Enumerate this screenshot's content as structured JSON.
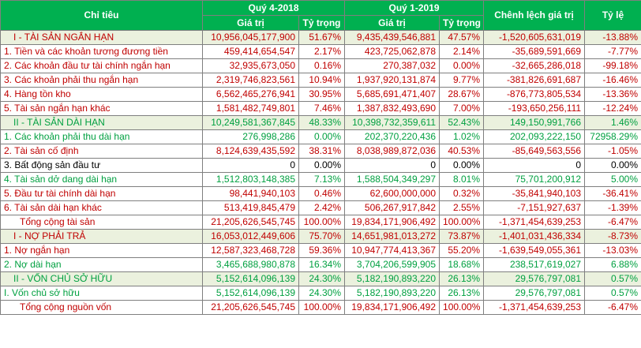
{
  "headers": {
    "chi_tieu": "Chỉ tiêu",
    "q4_2018": "Quý 4-2018",
    "q1_2019": "Quý 1-2019",
    "chenh_lech": "Chênh lệch giá trị",
    "ty_le": "Tỷ lệ",
    "gia_tri": "Giá trị",
    "ty_trong": "Tỷ trọng"
  },
  "rows": [
    {
      "label": "I - TÀI SẢN NGẮN HẠN",
      "v1": "10,956,045,177,900",
      "p1": "51.67%",
      "v2": "9,435,439,546,881",
      "p2": "47.57%",
      "diff": "-1,520,605,631,019",
      "rate": "-13.88%",
      "color": "red",
      "section": true
    },
    {
      "label": "1. Tiền và các khoản tương đương tiền",
      "v1": "459,414,654,547",
      "p1": "2.17%",
      "v2": "423,725,062,878",
      "p2": "2.14%",
      "diff": "-35,689,591,669",
      "rate": "-7.77%",
      "color": "red"
    },
    {
      "label": "2. Các khoản đầu tư tài chính ngắn hạn",
      "v1": "32,935,673,050",
      "p1": "0.16%",
      "v2": "270,387,032",
      "p2": "0.00%",
      "diff": "-32,665,286,018",
      "rate": "-99.18%",
      "color": "red"
    },
    {
      "label": "3. Các khoản phải thu ngắn hạn",
      "v1": "2,319,746,823,561",
      "p1": "10.94%",
      "v2": "1,937,920,131,874",
      "p2": "9.77%",
      "diff": "-381,826,691,687",
      "rate": "-16.46%",
      "color": "red"
    },
    {
      "label": "4. Hàng tồn kho",
      "v1": "6,562,465,276,941",
      "p1": "30.95%",
      "v2": "5,685,691,471,407",
      "p2": "28.67%",
      "diff": "-876,773,805,534",
      "rate": "-13.36%",
      "color": "red"
    },
    {
      "label": "5. Tài sản ngắn hạn khác",
      "v1": "1,581,482,749,801",
      "p1": "7.46%",
      "v2": "1,387,832,493,690",
      "p2": "7.00%",
      "diff": "-193,650,256,111",
      "rate": "-12.24%",
      "color": "red"
    },
    {
      "label": "II - TÀI SẢN DÀI HẠN",
      "v1": "10,249,581,367,845",
      "p1": "48.33%",
      "v2": "10,398,732,359,611",
      "p2": "52.43%",
      "diff": "149,150,991,766",
      "rate": "1.46%",
      "color": "green",
      "section": true
    },
    {
      "label": "1. Các khoản phải thu dài hạn",
      "v1": "276,998,286",
      "p1": "0.00%",
      "v2": "202,370,220,436",
      "p2": "1.02%",
      "diff": "202,093,222,150",
      "rate": "72958.29%",
      "color": "green"
    },
    {
      "label": "2. Tài sản cố định",
      "v1": "8,124,639,435,592",
      "p1": "38.31%",
      "v2": "8,038,989,872,036",
      "p2": "40.53%",
      "diff": "-85,649,563,556",
      "rate": "-1.05%",
      "color": "red"
    },
    {
      "label": "3. Bất động sản đầu tư",
      "v1": "0",
      "p1": "0.00%",
      "v2": "0",
      "p2": "0.00%",
      "diff": "0",
      "rate": "0.00%",
      "color": "black"
    },
    {
      "label": "4. Tài sản dở dang dài hạn",
      "v1": "1,512,803,148,385",
      "p1": "7.13%",
      "v2": "1,588,504,349,297",
      "p2": "8.01%",
      "diff": "75,701,200,912",
      "rate": "5.00%",
      "color": "green"
    },
    {
      "label": "5. Đầu tư tài chính dài hạn",
      "v1": "98,441,940,103",
      "p1": "0.46%",
      "v2": "62,600,000,000",
      "p2": "0.32%",
      "diff": "-35,841,940,103",
      "rate": "-36.41%",
      "color": "red"
    },
    {
      "label": "6. Tài sản dài hạn khác",
      "v1": "513,419,845,479",
      "p1": "2.42%",
      "v2": "506,267,917,842",
      "p2": "2.55%",
      "diff": "-7,151,927,637",
      "rate": "-1.39%",
      "color": "red"
    },
    {
      "label": "Tổng cộng tài sản",
      "v1": "21,205,626,545,745",
      "p1": "100.00%",
      "v2": "19,834,171,906,492",
      "p2": "100.00%",
      "diff": "-1,371,454,639,253",
      "rate": "-6.47%",
      "color": "red",
      "total": true
    },
    {
      "label": "I - NỢ PHẢI TRẢ",
      "v1": "16,053,012,449,606",
      "p1": "75.70%",
      "v2": "14,651,981,013,272",
      "p2": "73.87%",
      "diff": "-1,401,031,436,334",
      "rate": "-8.73%",
      "color": "red",
      "section": true
    },
    {
      "label": "1. Nợ ngắn hạn",
      "v1": "12,587,323,468,728",
      "p1": "59.36%",
      "v2": "10,947,774,413,367",
      "p2": "55.20%",
      "diff": "-1,639,549,055,361",
      "rate": "-13.03%",
      "color": "red"
    },
    {
      "label": "2. Nợ dài hạn",
      "v1": "3,465,688,980,878",
      "p1": "16.34%",
      "v2": "3,704,206,599,905",
      "p2": "18.68%",
      "diff": "238,517,619,027",
      "rate": "6.88%",
      "color": "green"
    },
    {
      "label": "II - VỐN CHỦ SỞ HỮU",
      "v1": "5,152,614,096,139",
      "p1": "24.30%",
      "v2": "5,182,190,893,220",
      "p2": "26.13%",
      "diff": "29,576,797,081",
      "rate": "0.57%",
      "color": "green",
      "section": true
    },
    {
      "label": "I. Vốn chủ sở hữu",
      "v1": "5,152,614,096,139",
      "p1": "24.30%",
      "v2": "5,182,190,893,220",
      "p2": "26.13%",
      "diff": "29,576,797,081",
      "rate": "0.57%",
      "color": "green"
    },
    {
      "label": "Tổng cộng nguồn vốn",
      "v1": "21,205,626,545,745",
      "p1": "100.00%",
      "v2": "19,834,171,906,492",
      "p2": "100.00%",
      "diff": "-1,371,454,639,253",
      "rate": "-6.47%",
      "color": "red",
      "total": true
    }
  ]
}
